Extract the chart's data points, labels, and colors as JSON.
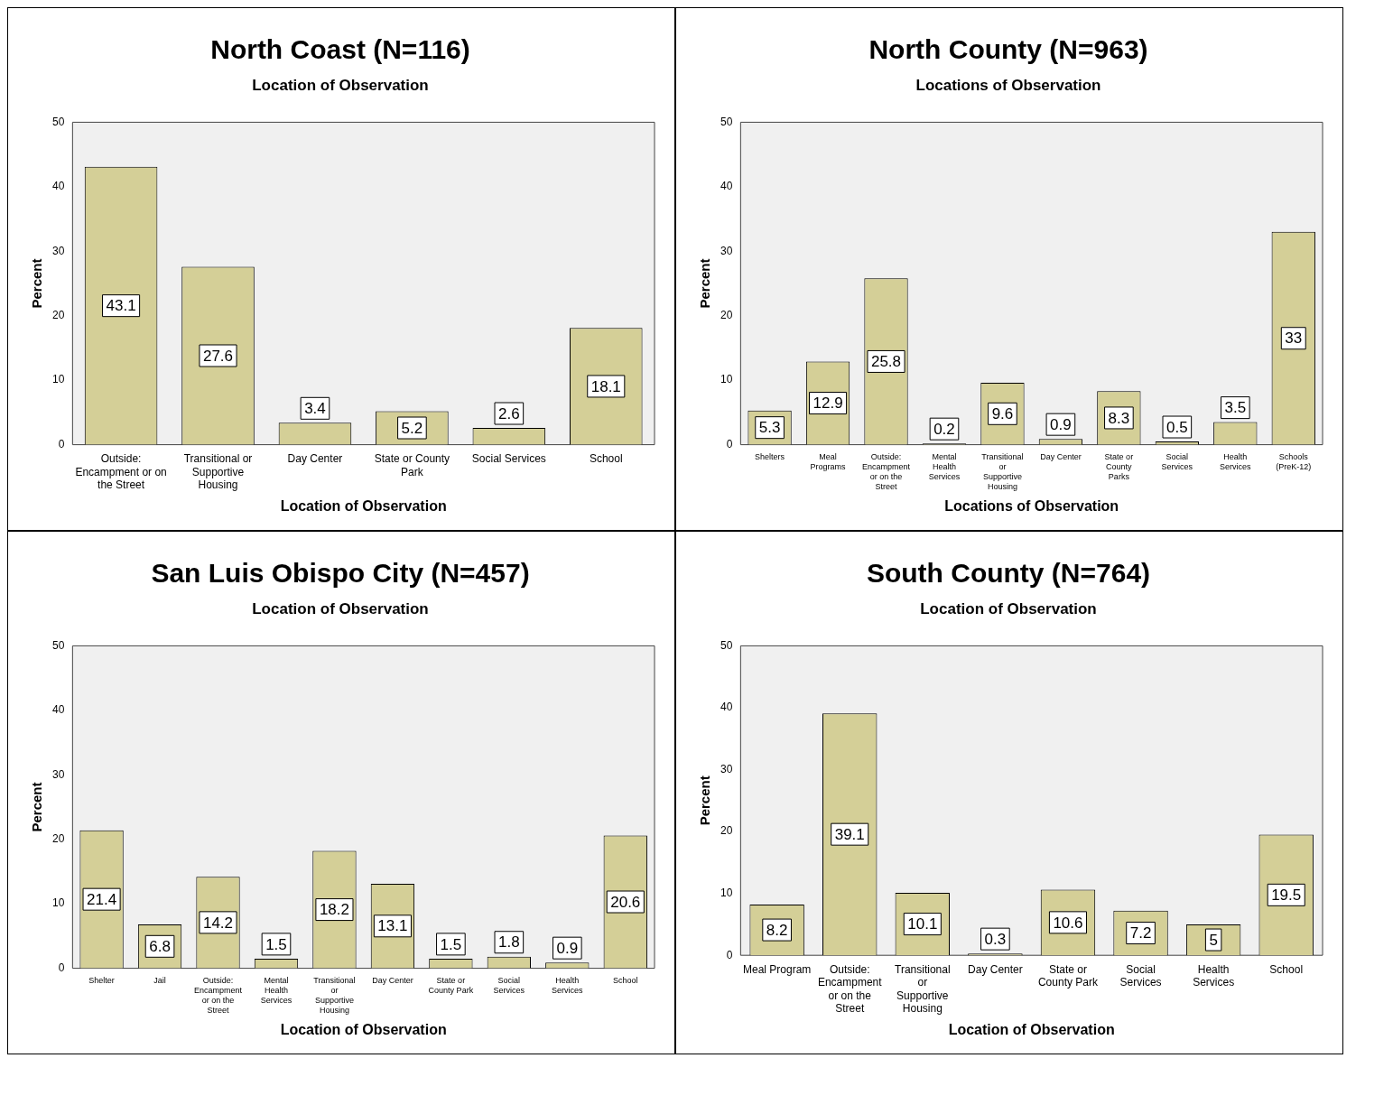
{
  "chart_data": [
    {
      "type": "bar",
      "title": "North Coast (N=116)",
      "subtitle": "Location of Observation",
      "xlabel": "Location of Observation",
      "ylabel": "Percent",
      "categories": [
        "Outside: Encampment or on the Street",
        "Transitional or Supportive Housing",
        "Day Center",
        "State or County Park",
        "Social Services",
        "School"
      ],
      "values": [
        43.1,
        27.6,
        3.4,
        5.2,
        2.6,
        18.1
      ],
      "color": "#d4cf97",
      "ylim": [
        0,
        50
      ],
      "yticks": [
        0,
        10,
        20,
        30,
        40,
        50
      ],
      "grid": false,
      "data_labels": true
    },
    {
      "type": "bar",
      "title": "North County (N=963)",
      "subtitle": "Locations of Observation",
      "xlabel": "Locations of Observation",
      "ylabel": "Percent",
      "categories": [
        "Shelters",
        "Meal Programs",
        "Outside: Encampment or on the Street",
        "Mental Health Services",
        "Transitional or Supportive Housing",
        "Day Center",
        "State or County Parks",
        "Social Services",
        "Health Services",
        "Schools (PreK-12)"
      ],
      "values": [
        5.3,
        12.9,
        25.8,
        0.2,
        9.6,
        0.9,
        8.3,
        0.5,
        3.5,
        33
      ],
      "color": "#d4cf97",
      "ylim": [
        0,
        50
      ],
      "yticks": [
        0,
        10,
        20,
        30,
        40,
        50
      ],
      "grid": false,
      "data_labels": true
    },
    {
      "type": "bar",
      "title": "San Luis Obispo City (N=457)",
      "subtitle": "Location of Observation",
      "xlabel": "Location of Observation",
      "ylabel": "Percent",
      "categories": [
        "Shelter",
        "Jail",
        "Outside: Encampment or on the Street",
        "Mental Health Services",
        "Transitional or Supportive Housing",
        "Day Center",
        "State or County Park",
        "Social Services",
        "Health Services",
        "School"
      ],
      "values": [
        21.4,
        6.8,
        14.2,
        1.5,
        18.2,
        13.1,
        1.5,
        1.8,
        0.9,
        20.6
      ],
      "color": "#d4cf97",
      "ylim": [
        0,
        50
      ],
      "yticks": [
        0,
        10,
        20,
        30,
        40,
        50
      ],
      "grid": false,
      "data_labels": true
    },
    {
      "type": "bar",
      "title": "South County (N=764)",
      "subtitle": "Location of Observation",
      "xlabel": "Location of Observation",
      "ylabel": "Percent",
      "categories": [
        "Meal Program",
        "Outside: Encampment or on the Street",
        "Transitional or Supportive Housing",
        "Day Center",
        "State or County Park",
        "Social Services",
        "Health Services",
        "School"
      ],
      "values": [
        8.2,
        39.1,
        10.1,
        0.3,
        10.6,
        7.2,
        5,
        19.5
      ],
      "color": "#d4cf97",
      "ylim": [
        0,
        50
      ],
      "yticks": [
        0,
        10,
        20,
        30,
        40,
        50
      ],
      "grid": false,
      "data_labels": true
    }
  ]
}
